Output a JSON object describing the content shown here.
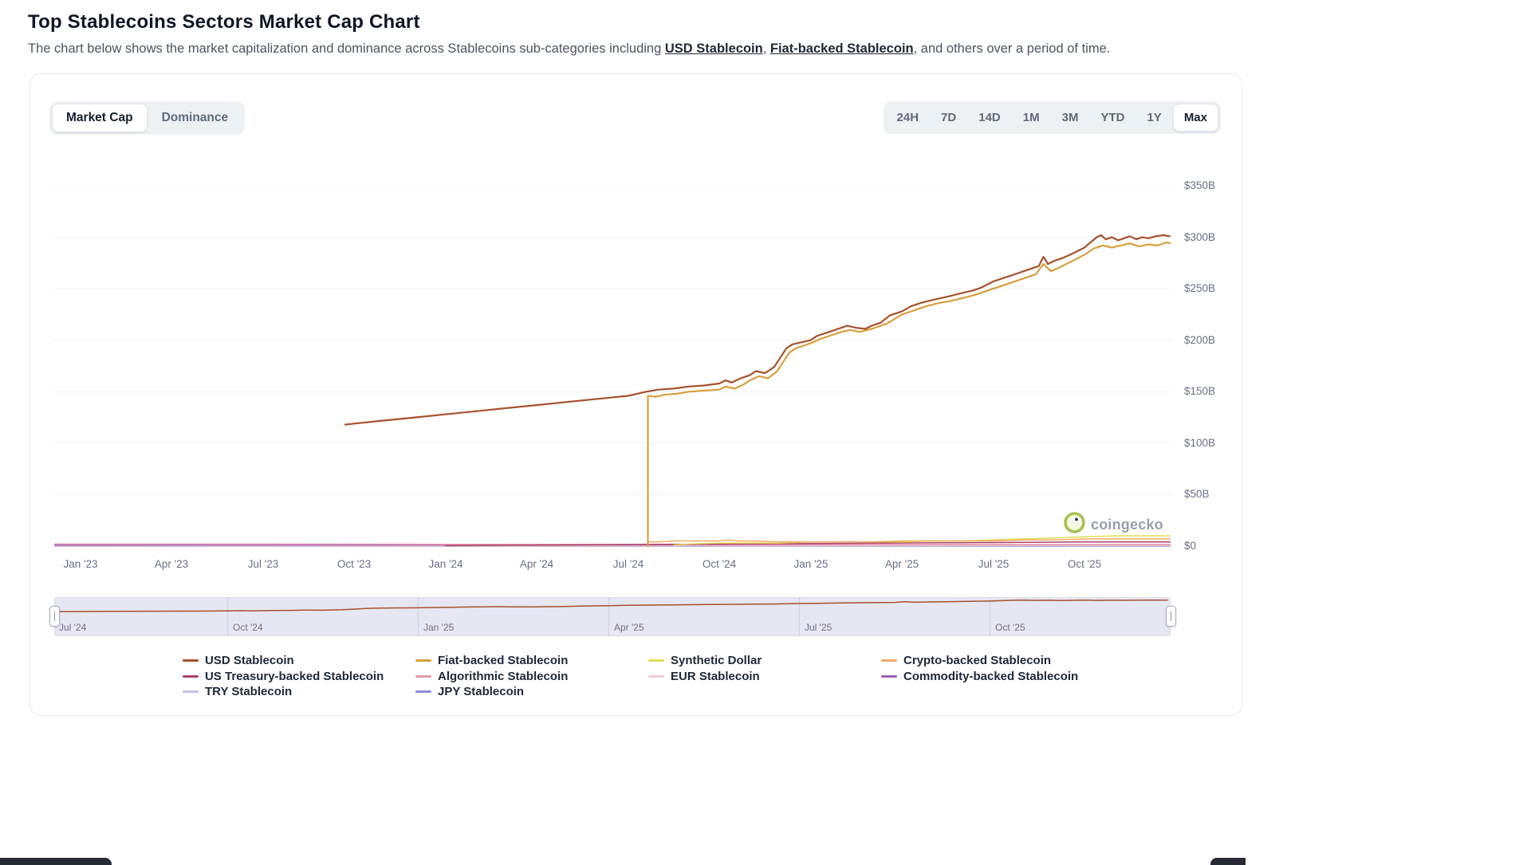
{
  "page": {
    "title": "Top Stablecoins Sectors Market Cap Chart",
    "subtitle_pre": "The chart below shows the market capitalization and dominance across Stablecoins sub-categories including ",
    "subtitle_link1": "USD Stablecoin",
    "subtitle_sep": ", ",
    "subtitle_link2": "Fiat-backed Stablecoin",
    "subtitle_post": ", and others over a period of time."
  },
  "toolbar": {
    "views": [
      {
        "label": "Market Cap",
        "active": true
      },
      {
        "label": "Dominance",
        "active": false
      }
    ],
    "ranges": [
      {
        "label": "24H",
        "active": false
      },
      {
        "label": "7D",
        "active": false
      },
      {
        "label": "14D",
        "active": false
      },
      {
        "label": "1M",
        "active": false
      },
      {
        "label": "3M",
        "active": false
      },
      {
        "label": "YTD",
        "active": false
      },
      {
        "label": "1Y",
        "active": false
      },
      {
        "label": "Max",
        "active": true
      }
    ]
  },
  "watermark": {
    "label": "coingecko"
  },
  "chart_data": {
    "type": "line",
    "title": "Top Stablecoins Sectors Market Cap",
    "x_unit": "months since Jan 2023",
    "y_unit": "billions USD",
    "ylim": [
      0,
      383
    ],
    "grid": "horizontal",
    "legend_position": "bottom",
    "y_ticks": [
      {
        "value": 350,
        "label": "$350B"
      },
      {
        "value": 300,
        "label": "$300B"
      },
      {
        "value": 250,
        "label": "$250B"
      },
      {
        "value": 200,
        "label": "$200B"
      },
      {
        "value": 150,
        "label": "$150B"
      },
      {
        "value": 100,
        "label": "$100B"
      },
      {
        "value": 50,
        "label": "$50B"
      },
      {
        "value": 0,
        "label": "$0"
      }
    ],
    "x_ticks": [
      {
        "month": 0,
        "label": "Jan '23"
      },
      {
        "month": 3,
        "label": "Apr '23"
      },
      {
        "month": 6,
        "label": "Jul '23"
      },
      {
        "month": 9,
        "label": "Oct '23"
      },
      {
        "month": 12,
        "label": "Jan '24"
      },
      {
        "month": 15,
        "label": "Apr '24"
      },
      {
        "month": 18,
        "label": "Jul '24"
      },
      {
        "month": 21,
        "label": "Oct '24"
      },
      {
        "month": 24,
        "label": "Jan '25"
      },
      {
        "month": 27,
        "label": "Apr '25"
      },
      {
        "month": 30,
        "label": "Jul '25"
      },
      {
        "month": 33,
        "label": "Oct '25"
      }
    ],
    "series": [
      {
        "name": "TRY Stablecoin",
        "color": "#C9BEEC",
        "points": [
          [
            -0.9,
            0.05
          ],
          [
            35.85,
            0.05
          ]
        ]
      },
      {
        "name": "JPY Stablecoin",
        "color": "#8B8BE0",
        "points": [
          [
            -0.9,
            0.02
          ],
          [
            35.85,
            0.02
          ]
        ]
      },
      {
        "name": "EUR Stablecoin",
        "color": "#F6C9D2",
        "points": [
          [
            -0.9,
            0.3
          ],
          [
            12,
            0.3
          ],
          [
            24,
            0.5
          ],
          [
            35.85,
            0.6
          ]
        ]
      },
      {
        "name": "Commodity-backed Stablecoin",
        "color": "#9A5FB5",
        "points": [
          [
            -0.9,
            1
          ],
          [
            12,
            1.1
          ],
          [
            24,
            1.3
          ],
          [
            35.85,
            1.5
          ]
        ]
      },
      {
        "name": "Algorithmic Stablecoin",
        "color": "#E795A8",
        "points": [
          [
            -0.9,
            2
          ],
          [
            6,
            2
          ],
          [
            12,
            1.8
          ],
          [
            18,
            1.6
          ],
          [
            24,
            1.5
          ],
          [
            30,
            1.5
          ],
          [
            35.85,
            1.5
          ]
        ]
      },
      {
        "name": "US Treasury-backed Stablecoin",
        "color": "#AC4266",
        "points": [
          [
            12,
            0.5
          ],
          [
            15,
            1
          ],
          [
            18,
            1.5
          ],
          [
            21,
            2
          ],
          [
            24,
            2.5
          ],
          [
            27,
            3
          ],
          [
            30,
            3.5
          ],
          [
            33,
            4
          ],
          [
            35.85,
            4
          ]
        ]
      },
      {
        "name": "Synthetic Dollar",
        "color": "#E3DC55",
        "points": [
          [
            19.5,
            1
          ],
          [
            20,
            2
          ],
          [
            21,
            3
          ],
          [
            22,
            3
          ],
          [
            23,
            3
          ],
          [
            24,
            4
          ],
          [
            25,
            4
          ],
          [
            26,
            4
          ],
          [
            27,
            4
          ],
          [
            28,
            5
          ],
          [
            29,
            5
          ],
          [
            30,
            6
          ],
          [
            31,
            7
          ],
          [
            32,
            8
          ],
          [
            33,
            9
          ],
          [
            34,
            10
          ],
          [
            35,
            10
          ],
          [
            35.85,
            10
          ]
        ]
      },
      {
        "name": "Crypto-backed Stablecoin",
        "color": "#F0AB66",
        "points": [
          [
            18.65,
            4
          ],
          [
            19,
            4
          ],
          [
            19.5,
            5
          ],
          [
            20,
            5
          ],
          [
            20.5,
            5
          ],
          [
            21,
            5
          ],
          [
            21.3,
            6
          ],
          [
            21.6,
            5
          ],
          [
            22,
            5
          ],
          [
            23,
            4
          ],
          [
            24,
            4
          ],
          [
            25,
            4
          ],
          [
            26,
            4
          ],
          [
            27,
            5
          ],
          [
            28,
            5
          ],
          [
            29,
            5
          ],
          [
            30,
            5
          ],
          [
            31,
            6
          ],
          [
            32,
            6
          ],
          [
            33,
            7
          ],
          [
            34,
            7
          ],
          [
            35,
            7
          ],
          [
            35.85,
            7
          ]
        ]
      },
      {
        "name": "Fiat-backed Stablecoin",
        "color": "#D99E3C",
        "points": [
          [
            18.65,
            0
          ],
          [
            18.65,
            146
          ],
          [
            18.9,
            145
          ],
          [
            19.2,
            147
          ],
          [
            19.6,
            148
          ],
          [
            20,
            150
          ],
          [
            20.5,
            151
          ],
          [
            21,
            152
          ],
          [
            21.2,
            155
          ],
          [
            21.5,
            153
          ],
          [
            21.8,
            157
          ],
          [
            22,
            161
          ],
          [
            22.3,
            165
          ],
          [
            22.6,
            163
          ],
          [
            22.9,
            170
          ],
          [
            23.1,
            179
          ],
          [
            23.3,
            188
          ],
          [
            23.5,
            192
          ],
          [
            23.8,
            195
          ],
          [
            24,
            197
          ],
          [
            24.3,
            201
          ],
          [
            24.6,
            204
          ],
          [
            25,
            208
          ],
          [
            25.3,
            210
          ],
          [
            25.6,
            208
          ],
          [
            26,
            211
          ],
          [
            26.5,
            216
          ],
          [
            27,
            225
          ],
          [
            27.4,
            229
          ],
          [
            27.8,
            233
          ],
          [
            28.2,
            236
          ],
          [
            28.6,
            238
          ],
          [
            29,
            241
          ],
          [
            29.4,
            244
          ],
          [
            29.8,
            248
          ],
          [
            30.2,
            252
          ],
          [
            30.6,
            256
          ],
          [
            31,
            260
          ],
          [
            31.4,
            264
          ],
          [
            31.65,
            274
          ],
          [
            31.9,
            267
          ],
          [
            32.2,
            271
          ],
          [
            32.6,
            277
          ],
          [
            33,
            283
          ],
          [
            33.3,
            289
          ],
          [
            33.6,
            292
          ],
          [
            33.9,
            290
          ],
          [
            34.2,
            292
          ],
          [
            34.5,
            294
          ],
          [
            34.8,
            291
          ],
          [
            35.1,
            293
          ],
          [
            35.4,
            292
          ],
          [
            35.7,
            295
          ],
          [
            35.85,
            294
          ]
        ]
      },
      {
        "name": "USD Stablecoin",
        "color": "#A6512D",
        "points": [
          [
            8.7,
            118
          ],
          [
            9,
            119
          ],
          [
            10,
            122
          ],
          [
            11,
            125
          ],
          [
            12,
            128
          ],
          [
            13,
            131
          ],
          [
            14,
            134
          ],
          [
            15,
            137
          ],
          [
            16,
            140
          ],
          [
            17,
            143
          ],
          [
            18,
            146
          ],
          [
            18.3,
            148
          ],
          [
            18.6,
            150
          ],
          [
            19,
            152
          ],
          [
            19.5,
            153
          ],
          [
            20,
            155
          ],
          [
            20.5,
            156
          ],
          [
            21,
            158
          ],
          [
            21.2,
            161
          ],
          [
            21.4,
            159
          ],
          [
            21.7,
            163
          ],
          [
            22,
            166
          ],
          [
            22.2,
            170
          ],
          [
            22.5,
            168
          ],
          [
            22.8,
            174
          ],
          [
            23,
            183
          ],
          [
            23.2,
            192
          ],
          [
            23.4,
            196
          ],
          [
            23.7,
            198
          ],
          [
            24,
            200
          ],
          [
            24.2,
            204
          ],
          [
            24.5,
            207
          ],
          [
            24.8,
            210
          ],
          [
            25,
            212
          ],
          [
            25.2,
            214
          ],
          [
            25.5,
            212
          ],
          [
            25.8,
            211
          ],
          [
            26,
            214
          ],
          [
            26.3,
            217
          ],
          [
            26.6,
            224
          ],
          [
            27,
            228
          ],
          [
            27.3,
            233
          ],
          [
            27.6,
            236
          ],
          [
            28,
            239
          ],
          [
            28.3,
            241
          ],
          [
            28.6,
            243
          ],
          [
            29,
            246
          ],
          [
            29.3,
            248
          ],
          [
            29.6,
            251
          ],
          [
            30,
            257
          ],
          [
            30.3,
            260
          ],
          [
            30.6,
            263
          ],
          [
            31,
            267
          ],
          [
            31.3,
            270
          ],
          [
            31.5,
            272
          ],
          [
            31.65,
            281
          ],
          [
            31.8,
            274
          ],
          [
            32,
            277
          ],
          [
            32.3,
            280
          ],
          [
            32.6,
            284
          ],
          [
            33,
            290
          ],
          [
            33.2,
            295
          ],
          [
            33.4,
            300
          ],
          [
            33.55,
            302
          ],
          [
            33.7,
            298
          ],
          [
            33.9,
            300
          ],
          [
            34.1,
            297
          ],
          [
            34.3,
            299
          ],
          [
            34.5,
            301
          ],
          [
            34.7,
            298
          ],
          [
            34.9,
            300
          ],
          [
            35.1,
            299
          ],
          [
            35.35,
            301
          ],
          [
            35.6,
            302
          ],
          [
            35.8,
            301
          ]
        ]
      }
    ]
  },
  "navigator": {
    "series_name": "USD Stablecoin",
    "ticks": [
      {
        "month": 18,
        "label": "Jul '24"
      },
      {
        "month": 21,
        "label": "Oct '24"
      },
      {
        "month": 24,
        "label": "Jan '25"
      },
      {
        "month": 27,
        "label": "Apr '25"
      },
      {
        "month": 30,
        "label": "Jul '25"
      },
      {
        "month": 33,
        "label": "Oct '25"
      }
    ]
  },
  "legend": {
    "columns": [
      {
        "items": [
          {
            "label": "USD Stablecoin",
            "color": "#A6512D"
          },
          {
            "label": "US Treasury-backed Stablecoin",
            "color": "#AC4266"
          },
          {
            "label": "TRY Stablecoin",
            "color": "#C9BEEC"
          }
        ]
      },
      {
        "items": [
          {
            "label": "Fiat-backed Stablecoin",
            "color": "#D99E3C"
          },
          {
            "label": "Algorithmic Stablecoin",
            "color": "#E795A8"
          },
          {
            "label": "JPY Stablecoin",
            "color": "#8B8BE0"
          }
        ]
      },
      {
        "items": [
          {
            "label": "Synthetic Dollar",
            "color": "#E3DC55"
          },
          {
            "label": "EUR Stablecoin",
            "color": "#F6C9D2"
          }
        ]
      },
      {
        "items": [
          {
            "label": "Crypto-backed Stablecoin",
            "color": "#F0AB66"
          },
          {
            "label": "Commodity-backed Stablecoin",
            "color": "#9A5FB5"
          }
        ]
      }
    ]
  }
}
